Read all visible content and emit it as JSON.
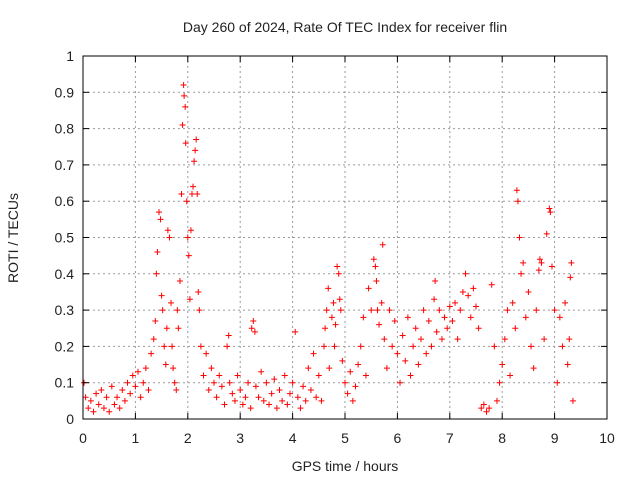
{
  "chart_data": {
    "type": "scatter",
    "title": "Day 260 of 2024, Rate Of TEC Index for receiver flin",
    "xlabel": "GPS time / hours",
    "ylabel": "ROTI / TECUs",
    "xlim": [
      0,
      10
    ],
    "ylim": [
      0,
      1
    ],
    "xticks": [
      "0",
      "1",
      "2",
      "3",
      "4",
      "5",
      "6",
      "7",
      "8",
      "9",
      "10"
    ],
    "yticks": [
      "0",
      "0.1",
      "0.2",
      "0.3",
      "0.4",
      "0.5",
      "0.6",
      "0.7",
      "0.8",
      "0.9",
      "1"
    ],
    "grid": true,
    "marker": "+",
    "color": "#ff0000",
    "series": [
      {
        "name": "ROTI",
        "points": [
          [
            0.02,
            0.1
          ],
          [
            0.05,
            0.06
          ],
          [
            0.1,
            0.03
          ],
          [
            0.15,
            0.05
          ],
          [
            0.2,
            0.02
          ],
          [
            0.25,
            0.07
          ],
          [
            0.3,
            0.04
          ],
          [
            0.35,
            0.08
          ],
          [
            0.4,
            0.03
          ],
          [
            0.45,
            0.06
          ],
          [
            0.5,
            0.02
          ],
          [
            0.55,
            0.09
          ],
          [
            0.6,
            0.04
          ],
          [
            0.65,
            0.06
          ],
          [
            0.7,
            0.03
          ],
          [
            0.75,
            0.08
          ],
          [
            0.8,
            0.05
          ],
          [
            0.85,
            0.1
          ],
          [
            0.9,
            0.07
          ],
          [
            0.95,
            0.12
          ],
          [
            1.0,
            0.09
          ],
          [
            1.05,
            0.13
          ],
          [
            1.1,
            0.06
          ],
          [
            1.15,
            0.1
          ],
          [
            1.2,
            0.14
          ],
          [
            1.25,
            0.08
          ],
          [
            1.3,
            0.18
          ],
          [
            1.35,
            0.22
          ],
          [
            1.38,
            0.27
          ],
          [
            1.4,
            0.4
          ],
          [
            1.42,
            0.46
          ],
          [
            1.45,
            0.57
          ],
          [
            1.48,
            0.55
          ],
          [
            1.5,
            0.34
          ],
          [
            1.52,
            0.3
          ],
          [
            1.55,
            0.2
          ],
          [
            1.58,
            0.15
          ],
          [
            1.6,
            0.25
          ],
          [
            1.62,
            0.52
          ],
          [
            1.65,
            0.5
          ],
          [
            1.68,
            0.32
          ],
          [
            1.7,
            0.2
          ],
          [
            1.72,
            0.14
          ],
          [
            1.75,
            0.1
          ],
          [
            1.78,
            0.08
          ],
          [
            1.8,
            0.3
          ],
          [
            1.82,
            0.25
          ],
          [
            1.85,
            0.38
          ],
          [
            1.88,
            0.62
          ],
          [
            1.9,
            0.81
          ],
          [
            1.92,
            0.92
          ],
          [
            1.93,
            0.89
          ],
          [
            1.95,
            0.86
          ],
          [
            1.96,
            0.76
          ],
          [
            1.98,
            0.6
          ],
          [
            2.0,
            0.5
          ],
          [
            2.02,
            0.45
          ],
          [
            2.04,
            0.33
          ],
          [
            2.06,
            0.52
          ],
          [
            2.08,
            0.62
          ],
          [
            2.1,
            0.64
          ],
          [
            2.12,
            0.71
          ],
          [
            2.14,
            0.74
          ],
          [
            2.16,
            0.77
          ],
          [
            2.18,
            0.62
          ],
          [
            2.2,
            0.35
          ],
          [
            2.22,
            0.3
          ],
          [
            2.25,
            0.2
          ],
          [
            2.3,
            0.12
          ],
          [
            2.35,
            0.18
          ],
          [
            2.4,
            0.08
          ],
          [
            2.45,
            0.14
          ],
          [
            2.5,
            0.1
          ],
          [
            2.55,
            0.06
          ],
          [
            2.6,
            0.12
          ],
          [
            2.65,
            0.09
          ],
          [
            2.7,
            0.04
          ],
          [
            2.75,
            0.2
          ],
          [
            2.78,
            0.23
          ],
          [
            2.8,
            0.1
          ],
          [
            2.85,
            0.07
          ],
          [
            2.9,
            0.05
          ],
          [
            2.95,
            0.12
          ],
          [
            3.0,
            0.08
          ],
          [
            3.05,
            0.04
          ],
          [
            3.1,
            0.06
          ],
          [
            3.15,
            0.1
          ],
          [
            3.2,
            0.03
          ],
          [
            3.22,
            0.25
          ],
          [
            3.25,
            0.27
          ],
          [
            3.28,
            0.24
          ],
          [
            3.3,
            0.09
          ],
          [
            3.35,
            0.06
          ],
          [
            3.4,
            0.13
          ],
          [
            3.45,
            0.05
          ],
          [
            3.5,
            0.1
          ],
          [
            3.55,
            0.04
          ],
          [
            3.6,
            0.07
          ],
          [
            3.65,
            0.11
          ],
          [
            3.7,
            0.03
          ],
          [
            3.75,
            0.08
          ],
          [
            3.8,
            0.05
          ],
          [
            3.85,
            0.12
          ],
          [
            3.9,
            0.04
          ],
          [
            3.95,
            0.07
          ],
          [
            4.0,
            0.1
          ],
          [
            4.05,
            0.24
          ],
          [
            4.1,
            0.06
          ],
          [
            4.15,
            0.03
          ],
          [
            4.2,
            0.09
          ],
          [
            4.25,
            0.05
          ],
          [
            4.3,
            0.14
          ],
          [
            4.35,
            0.08
          ],
          [
            4.4,
            0.18
          ],
          [
            4.45,
            0.06
          ],
          [
            4.5,
            0.12
          ],
          [
            4.55,
            0.05
          ],
          [
            4.6,
            0.2
          ],
          [
            4.62,
            0.25
          ],
          [
            4.65,
            0.3
          ],
          [
            4.68,
            0.36
          ],
          [
            4.7,
            0.14
          ],
          [
            4.75,
            0.28
          ],
          [
            4.78,
            0.32
          ],
          [
            4.8,
            0.2
          ],
          [
            4.82,
            0.26
          ],
          [
            4.85,
            0.42
          ],
          [
            4.88,
            0.4
          ],
          [
            4.9,
            0.33
          ],
          [
            4.92,
            0.3
          ],
          [
            4.95,
            0.16
          ],
          [
            5.0,
            0.1
          ],
          [
            5.05,
            0.07
          ],
          [
            5.1,
            0.13
          ],
          [
            5.15,
            0.05
          ],
          [
            5.2,
            0.09
          ],
          [
            5.25,
            0.15
          ],
          [
            5.3,
            0.2
          ],
          [
            5.35,
            0.28
          ],
          [
            5.4,
            0.12
          ],
          [
            5.45,
            0.36
          ],
          [
            5.5,
            0.3
          ],
          [
            5.55,
            0.44
          ],
          [
            5.58,
            0.42
          ],
          [
            5.6,
            0.38
          ],
          [
            5.62,
            0.3
          ],
          [
            5.65,
            0.26
          ],
          [
            5.7,
            0.32
          ],
          [
            5.72,
            0.48
          ],
          [
            5.75,
            0.22
          ],
          [
            5.8,
            0.14
          ],
          [
            5.85,
            0.3
          ],
          [
            5.9,
            0.2
          ],
          [
            5.95,
            0.27
          ],
          [
            6.0,
            0.18
          ],
          [
            6.05,
            0.1
          ],
          [
            6.1,
            0.23
          ],
          [
            6.15,
            0.16
          ],
          [
            6.2,
            0.28
          ],
          [
            6.25,
            0.12
          ],
          [
            6.3,
            0.2
          ],
          [
            6.35,
            0.25
          ],
          [
            6.4,
            0.15
          ],
          [
            6.45,
            0.22
          ],
          [
            6.5,
            0.3
          ],
          [
            6.55,
            0.18
          ],
          [
            6.6,
            0.27
          ],
          [
            6.65,
            0.2
          ],
          [
            6.7,
            0.33
          ],
          [
            6.72,
            0.38
          ],
          [
            6.75,
            0.24
          ],
          [
            6.8,
            0.3
          ],
          [
            6.85,
            0.22
          ],
          [
            6.9,
            0.28
          ],
          [
            6.95,
            0.25
          ],
          [
            7.0,
            0.31
          ],
          [
            7.05,
            0.27
          ],
          [
            7.1,
            0.32
          ],
          [
            7.15,
            0.22
          ],
          [
            7.2,
            0.3
          ],
          [
            7.25,
            0.35
          ],
          [
            7.3,
            0.4
          ],
          [
            7.35,
            0.34
          ],
          [
            7.4,
            0.28
          ],
          [
            7.45,
            0.36
          ],
          [
            7.5,
            0.31
          ],
          [
            7.55,
            0.25
          ],
          [
            7.6,
            0.03
          ],
          [
            7.65,
            0.04
          ],
          [
            7.7,
            0.02
          ],
          [
            7.75,
            0.03
          ],
          [
            7.8,
            0.37
          ],
          [
            7.85,
            0.2
          ],
          [
            7.9,
            0.05
          ],
          [
            7.95,
            0.1
          ],
          [
            8.0,
            0.15
          ],
          [
            8.05,
            0.22
          ],
          [
            8.1,
            0.3
          ],
          [
            8.15,
            0.12
          ],
          [
            8.2,
            0.32
          ],
          [
            8.25,
            0.25
          ],
          [
            8.28,
            0.63
          ],
          [
            8.3,
            0.6
          ],
          [
            8.33,
            0.5
          ],
          [
            8.36,
            0.4
          ],
          [
            8.4,
            0.43
          ],
          [
            8.45,
            0.28
          ],
          [
            8.5,
            0.35
          ],
          [
            8.55,
            0.2
          ],
          [
            8.6,
            0.14
          ],
          [
            8.65,
            0.3
          ],
          [
            8.7,
            0.41
          ],
          [
            8.72,
            0.44
          ],
          [
            8.75,
            0.43
          ],
          [
            8.8,
            0.22
          ],
          [
            8.85,
            0.51
          ],
          [
            8.9,
            0.58
          ],
          [
            8.92,
            0.57
          ],
          [
            8.95,
            0.42
          ],
          [
            9.0,
            0.3
          ],
          [
            9.05,
            0.1
          ],
          [
            9.1,
            0.28
          ],
          [
            9.15,
            0.2
          ],
          [
            9.2,
            0.32
          ],
          [
            9.25,
            0.15
          ],
          [
            9.28,
            0.22
          ],
          [
            9.3,
            0.39
          ],
          [
            9.32,
            0.43
          ],
          [
            9.35,
            0.05
          ]
        ]
      }
    ]
  }
}
